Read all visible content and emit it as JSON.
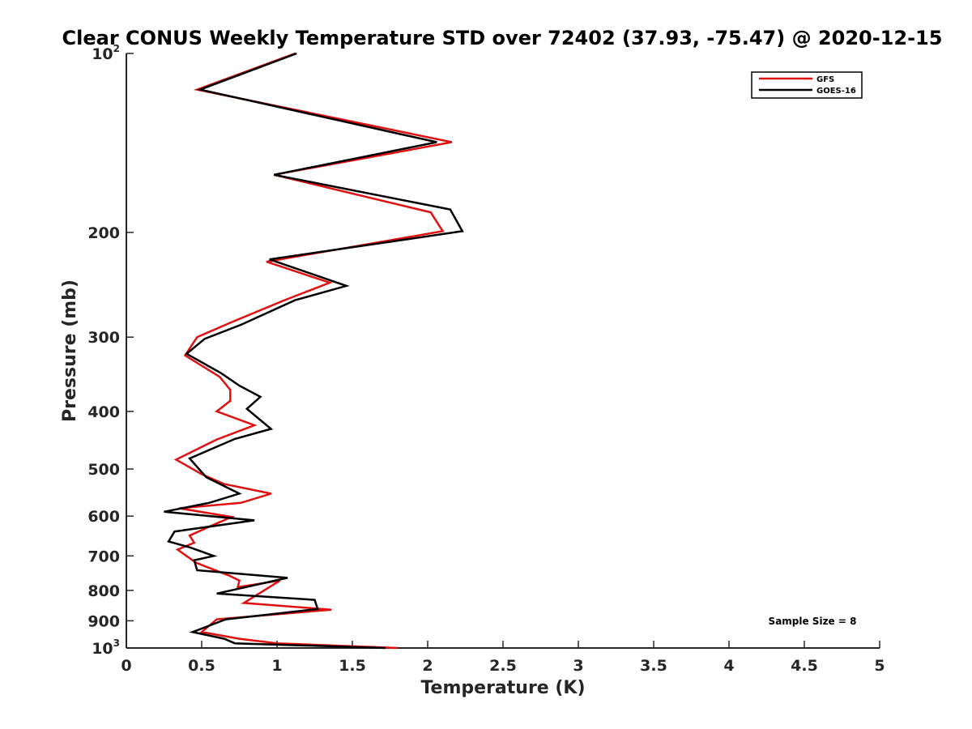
{
  "chart_data": {
    "type": "line",
    "title": "Clear CONUS Weekly Temperature STD over 72402 (37.93, -75.47) @ 2020-12-15",
    "xlabel": "Temperature (K)",
    "ylabel": "Pressure (mb)",
    "xlim": [
      0,
      5
    ],
    "ylim": [
      100,
      1000
    ],
    "y_scale": "log",
    "y_reversed": true,
    "grid": false,
    "legend_position": "top-right",
    "x_ticks": [
      "0",
      "0.5",
      "1",
      "1.5",
      "2",
      "2.5",
      "3",
      "3.5",
      "4",
      "4.5",
      "5"
    ],
    "y_ticks": [
      {
        "value": 100,
        "base": "10",
        "exp": "2"
      },
      {
        "value": 200,
        "base": "200",
        "exp": ""
      },
      {
        "value": 300,
        "base": "300",
        "exp": ""
      },
      {
        "value": 400,
        "base": "400",
        "exp": ""
      },
      {
        "value": 500,
        "base": "500",
        "exp": ""
      },
      {
        "value": 600,
        "base": "600",
        "exp": ""
      },
      {
        "value": 700,
        "base": "700",
        "exp": ""
      },
      {
        "value": 800,
        "base": "800",
        "exp": ""
      },
      {
        "value": 900,
        "base": "900",
        "exp": ""
      },
      {
        "value": 1000,
        "base": "10",
        "exp": "3"
      }
    ],
    "series": [
      {
        "name": "GFS",
        "color": "#e01010",
        "points": [
          [
            1.12,
            100
          ],
          [
            0.47,
            115
          ],
          [
            2.16,
            141
          ],
          [
            0.98,
            160
          ],
          [
            2.02,
            185
          ],
          [
            2.1,
            199
          ],
          [
            0.93,
            224
          ],
          [
            1.35,
            243
          ],
          [
            1.05,
            260
          ],
          [
            0.7,
            283
          ],
          [
            0.47,
            300
          ],
          [
            0.39,
            322
          ],
          [
            0.62,
            350
          ],
          [
            0.69,
            368
          ],
          [
            0.69,
            384
          ],
          [
            0.6,
            400
          ],
          [
            0.85,
            422
          ],
          [
            0.6,
            446
          ],
          [
            0.33,
            482
          ],
          [
            0.5,
            510
          ],
          [
            0.65,
            530
          ],
          [
            0.96,
            550
          ],
          [
            0.76,
            570
          ],
          [
            0.35,
            582
          ],
          [
            0.7,
            602
          ],
          [
            0.55,
            625
          ],
          [
            0.42,
            647
          ],
          [
            0.45,
            665
          ],
          [
            0.34,
            683
          ],
          [
            0.46,
            718
          ],
          [
            0.53,
            730
          ],
          [
            0.68,
            755
          ],
          [
            0.75,
            770
          ],
          [
            0.74,
            790
          ],
          [
            1.02,
            770
          ],
          [
            0.78,
            840
          ],
          [
            1.36,
            862
          ],
          [
            0.6,
            895
          ],
          [
            0.5,
            940
          ],
          [
            0.75,
            965
          ],
          [
            1.0,
            982
          ],
          [
            1.8,
            1000
          ]
        ]
      },
      {
        "name": "GOES-16",
        "color": "#000000",
        "points": [
          [
            1.13,
            100
          ],
          [
            0.49,
            115
          ],
          [
            2.06,
            141
          ],
          [
            0.98,
            160
          ],
          [
            2.15,
            183
          ],
          [
            2.23,
            199
          ],
          [
            0.95,
            222
          ],
          [
            1.46,
            246
          ],
          [
            1.12,
            260
          ],
          [
            0.76,
            286
          ],
          [
            0.52,
            302
          ],
          [
            0.4,
            320
          ],
          [
            0.63,
            345
          ],
          [
            0.75,
            362
          ],
          [
            0.89,
            378
          ],
          [
            0.8,
            396
          ],
          [
            0.96,
            428
          ],
          [
            0.72,
            445
          ],
          [
            0.42,
            480
          ],
          [
            0.53,
            516
          ],
          [
            0.75,
            550
          ],
          [
            0.55,
            570
          ],
          [
            0.25,
            590
          ],
          [
            0.85,
            610
          ],
          [
            0.32,
            637
          ],
          [
            0.28,
            662
          ],
          [
            0.42,
            677
          ],
          [
            0.58,
            700
          ],
          [
            0.45,
            712
          ],
          [
            0.47,
            740
          ],
          [
            1.07,
            762
          ],
          [
            0.6,
            810
          ],
          [
            1.25,
            830
          ],
          [
            1.27,
            860
          ],
          [
            0.66,
            895
          ],
          [
            0.44,
            940
          ],
          [
            0.65,
            965
          ],
          [
            0.72,
            982
          ],
          [
            1.72,
            1000
          ]
        ]
      }
    ],
    "annotation": "Sample Size = 8"
  }
}
